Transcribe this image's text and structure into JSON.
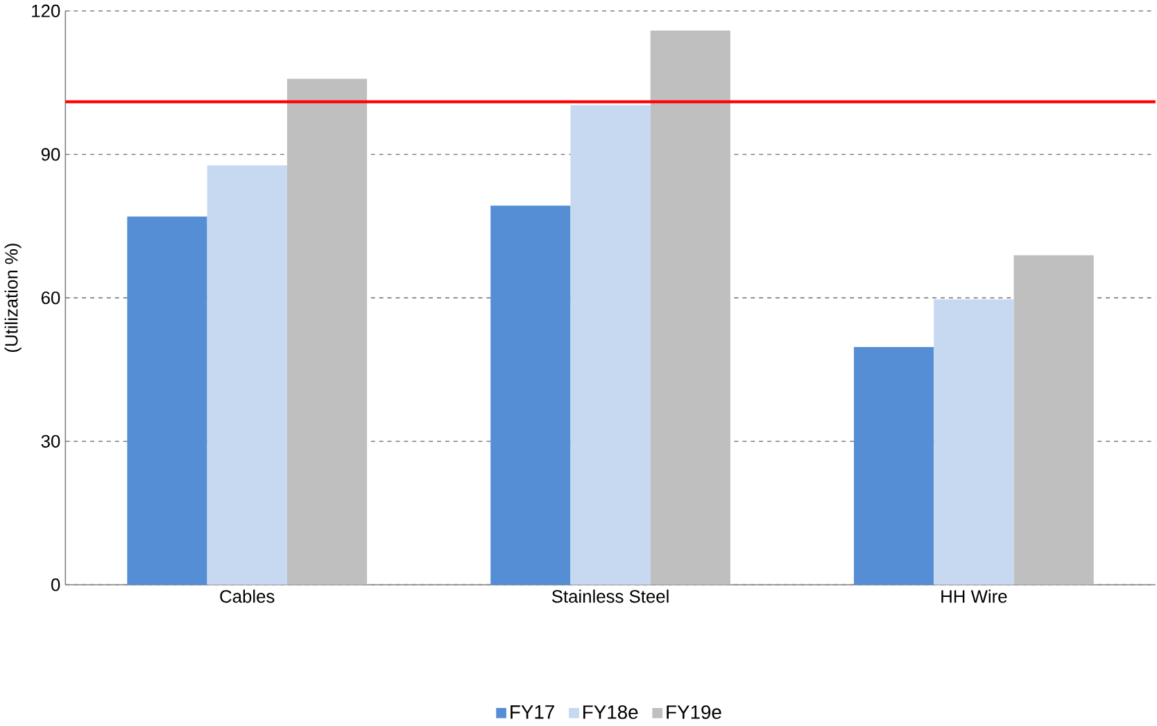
{
  "chart_data": {
    "type": "bar",
    "ylabel": "(Utilization %)",
    "categories": [
      "Cables",
      "Stainless Steel",
      "HH Wire"
    ],
    "series": [
      {
        "name": "FY17",
        "color": "#558ed5",
        "values": [
          77,
          79.3,
          49.7
        ]
      },
      {
        "name": "FY18e",
        "color": "#c6d9f1",
        "values": [
          87.7,
          100.3,
          59.7
        ]
      },
      {
        "name": "FY19e",
        "color": "#bfbfbf",
        "values": [
          105.8,
          115.9,
          68.9
        ]
      }
    ],
    "ylim": [
      0,
      120
    ],
    "yticks": [
      0,
      30,
      60,
      90,
      120
    ],
    "grid": "y",
    "legend": "bottom",
    "ref_lines": [
      {
        "axis": "y",
        "value": 101,
        "color": "#ff0000"
      }
    ]
  }
}
